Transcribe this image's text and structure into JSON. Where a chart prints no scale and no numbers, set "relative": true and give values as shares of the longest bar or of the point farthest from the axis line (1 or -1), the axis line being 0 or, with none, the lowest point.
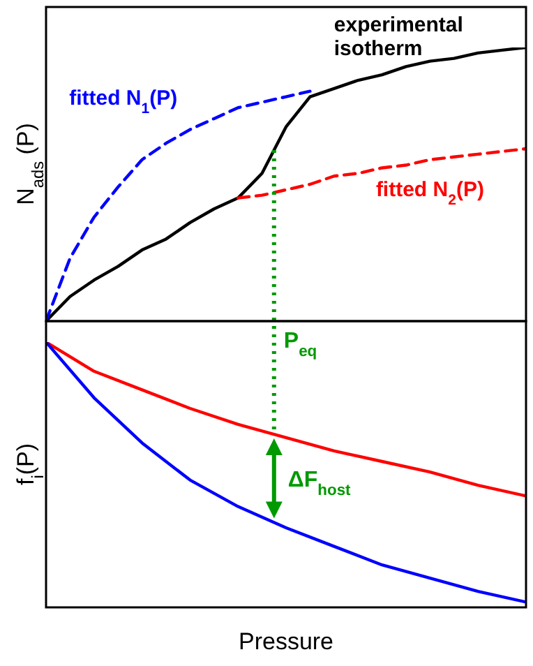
{
  "chart_data": [
    {
      "type": "line",
      "ylabel": "N$_{ads}$ (P)",
      "relative": true,
      "categories": [
        null,
        null,
        null,
        null,
        null,
        null,
        null,
        null,
        null,
        null,
        null,
        null,
        null,
        null,
        null,
        null,
        null,
        null,
        null,
        null,
        null
      ],
      "marker": "none",
      "series": [
        {
          "name": "experimental isotherm",
          "color": "#000000",
          "line_style": "solid",
          "values": [
            0,
            0.09,
            0.15,
            0.2,
            0.26,
            0.3,
            0.36,
            0.41,
            0.45,
            0.54,
            0.71,
            0.82,
            0.85,
            0.88,
            0.9,
            0.93,
            0.95,
            0.96,
            0.98,
            0.99,
            1
          ]
        },
        {
          "name": "fitted N$_{1}$(P)",
          "color": "#0000ff",
          "line_style": "dashed",
          "values": [
            0,
            0.23,
            0.38,
            0.49,
            0.59,
            0.65,
            0.7,
            0.74,
            0.78,
            0.8,
            0.82,
            0.84,
            null,
            null,
            null,
            null,
            null,
            null,
            null,
            null,
            null
          ]
        },
        {
          "name": "fitted N$_{2}$(P)",
          "color": "#ff0000",
          "line_style": "dashed",
          "values": [
            null,
            null,
            null,
            null,
            null,
            null,
            null,
            null,
            0.45,
            0.46,
            0.48,
            0.5,
            0.53,
            0.54,
            0.56,
            0.57,
            0.59,
            0.6,
            0.61,
            0.62,
            0.63
          ]
        }
      ],
      "ref_lines": [
        {
          "axis": "x",
          "label": "P$_{eq}$",
          "color": "#009900",
          "line_style": "dotted"
        }
      ]
    },
    {
      "type": "line",
      "ylabel": "f$_{i}$(P)",
      "xlabel": "Pressure",
      "relative": true,
      "categories": [
        null,
        null,
        null,
        null,
        null,
        null,
        null,
        null,
        null,
        null,
        null
      ],
      "marker": "none",
      "series": [
        {
          "color": "#ff0000",
          "line_style": "solid",
          "values": [
            1,
            0.89,
            0.82,
            0.75,
            0.69,
            0.64,
            0.59,
            0.55,
            0.51,
            0.46,
            0.42
          ]
        },
        {
          "color": "#0000ff",
          "line_style": "solid",
          "values": [
            1,
            0.79,
            0.62,
            0.48,
            0.38,
            0.3,
            0.23,
            0.16,
            0.11,
            0.06,
            0.02
          ]
        }
      ],
      "annotations": [
        "ΔF$_{host}$"
      ]
    }
  ]
}
